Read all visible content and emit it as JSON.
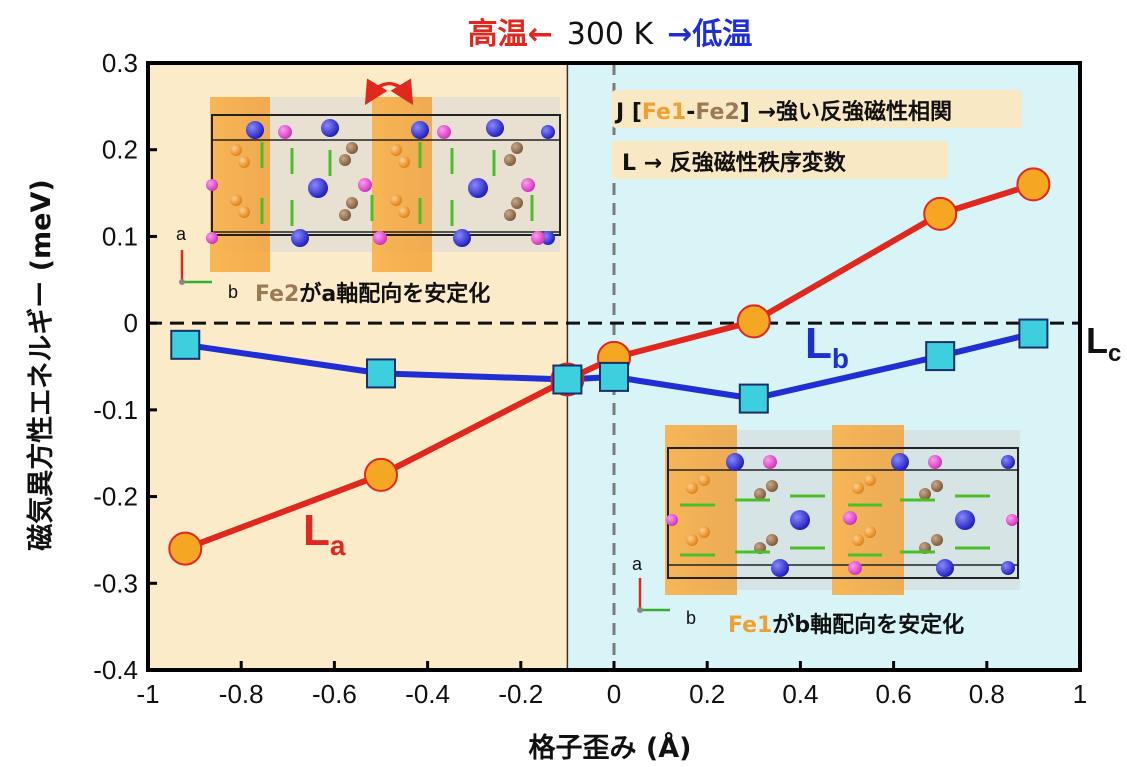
{
  "chart_data": {
    "type": "line",
    "top_title": {
      "left": "高温←",
      "middle": "300 K",
      "right": "→低温"
    },
    "xlabel": "格子歪み (Å)",
    "ylabel": "磁気異方性エネルギー (meV)",
    "xlim": [
      -1,
      1
    ],
    "ylim": [
      -0.4,
      0.3
    ],
    "xticks": [
      "-1",
      "-0.8",
      "-0.6",
      "-0.4",
      "-0.2",
      "0",
      "0.2",
      "0.4",
      "0.6",
      "0.8",
      "1"
    ],
    "yticks": [
      "0.3",
      "0.2",
      "0.1",
      "0",
      "-0.1",
      "-0.2",
      "-0.3",
      "-0.4"
    ],
    "region_divider_x": -0.1,
    "zero_reference": "L",
    "zero_reference_sub": "c",
    "series": [
      {
        "name": "L",
        "sub": "a",
        "color": "#e0281e",
        "marker": "circle",
        "marker_color": "#f5a623",
        "x": [
          -0.92,
          -0.5,
          -0.1,
          0.0,
          0.3,
          0.7,
          0.9
        ],
        "y": [
          -0.26,
          -0.175,
          -0.065,
          -0.04,
          0.002,
          0.126,
          0.16
        ]
      },
      {
        "name": "L",
        "sub": "b",
        "color": "#1f2fd4",
        "marker": "square",
        "marker_color": "#3ecfdf",
        "x": [
          -0.92,
          -0.5,
          -0.1,
          0.0,
          0.3,
          0.7,
          0.9
        ],
        "y": [
          -0.025,
          -0.058,
          -0.065,
          -0.062,
          -0.087,
          -0.038,
          -0.012
        ]
      }
    ],
    "annotations": {
      "j_line_prefix": "J [",
      "fe1": "Fe1",
      "dash": "-",
      "fe2": "Fe2",
      "j_line_suffix": "] →強い反強磁性相関",
      "l_line": "L → 反強磁性秩序変数",
      "left_inset_fe": "Fe2",
      "left_inset_text": "がa軸配向を安定化",
      "right_inset_fe": "Fe1",
      "right_inset_text": "がb軸配向を安定化",
      "axis_a": "a",
      "axis_b": "b"
    },
    "colors": {
      "left_region": "#fcebc9",
      "right_region": "#d8f4f7",
      "high_temp": "#e0281e",
      "low_temp": "#1f2fd4",
      "fe_orange": "#f0a030"
    }
  }
}
